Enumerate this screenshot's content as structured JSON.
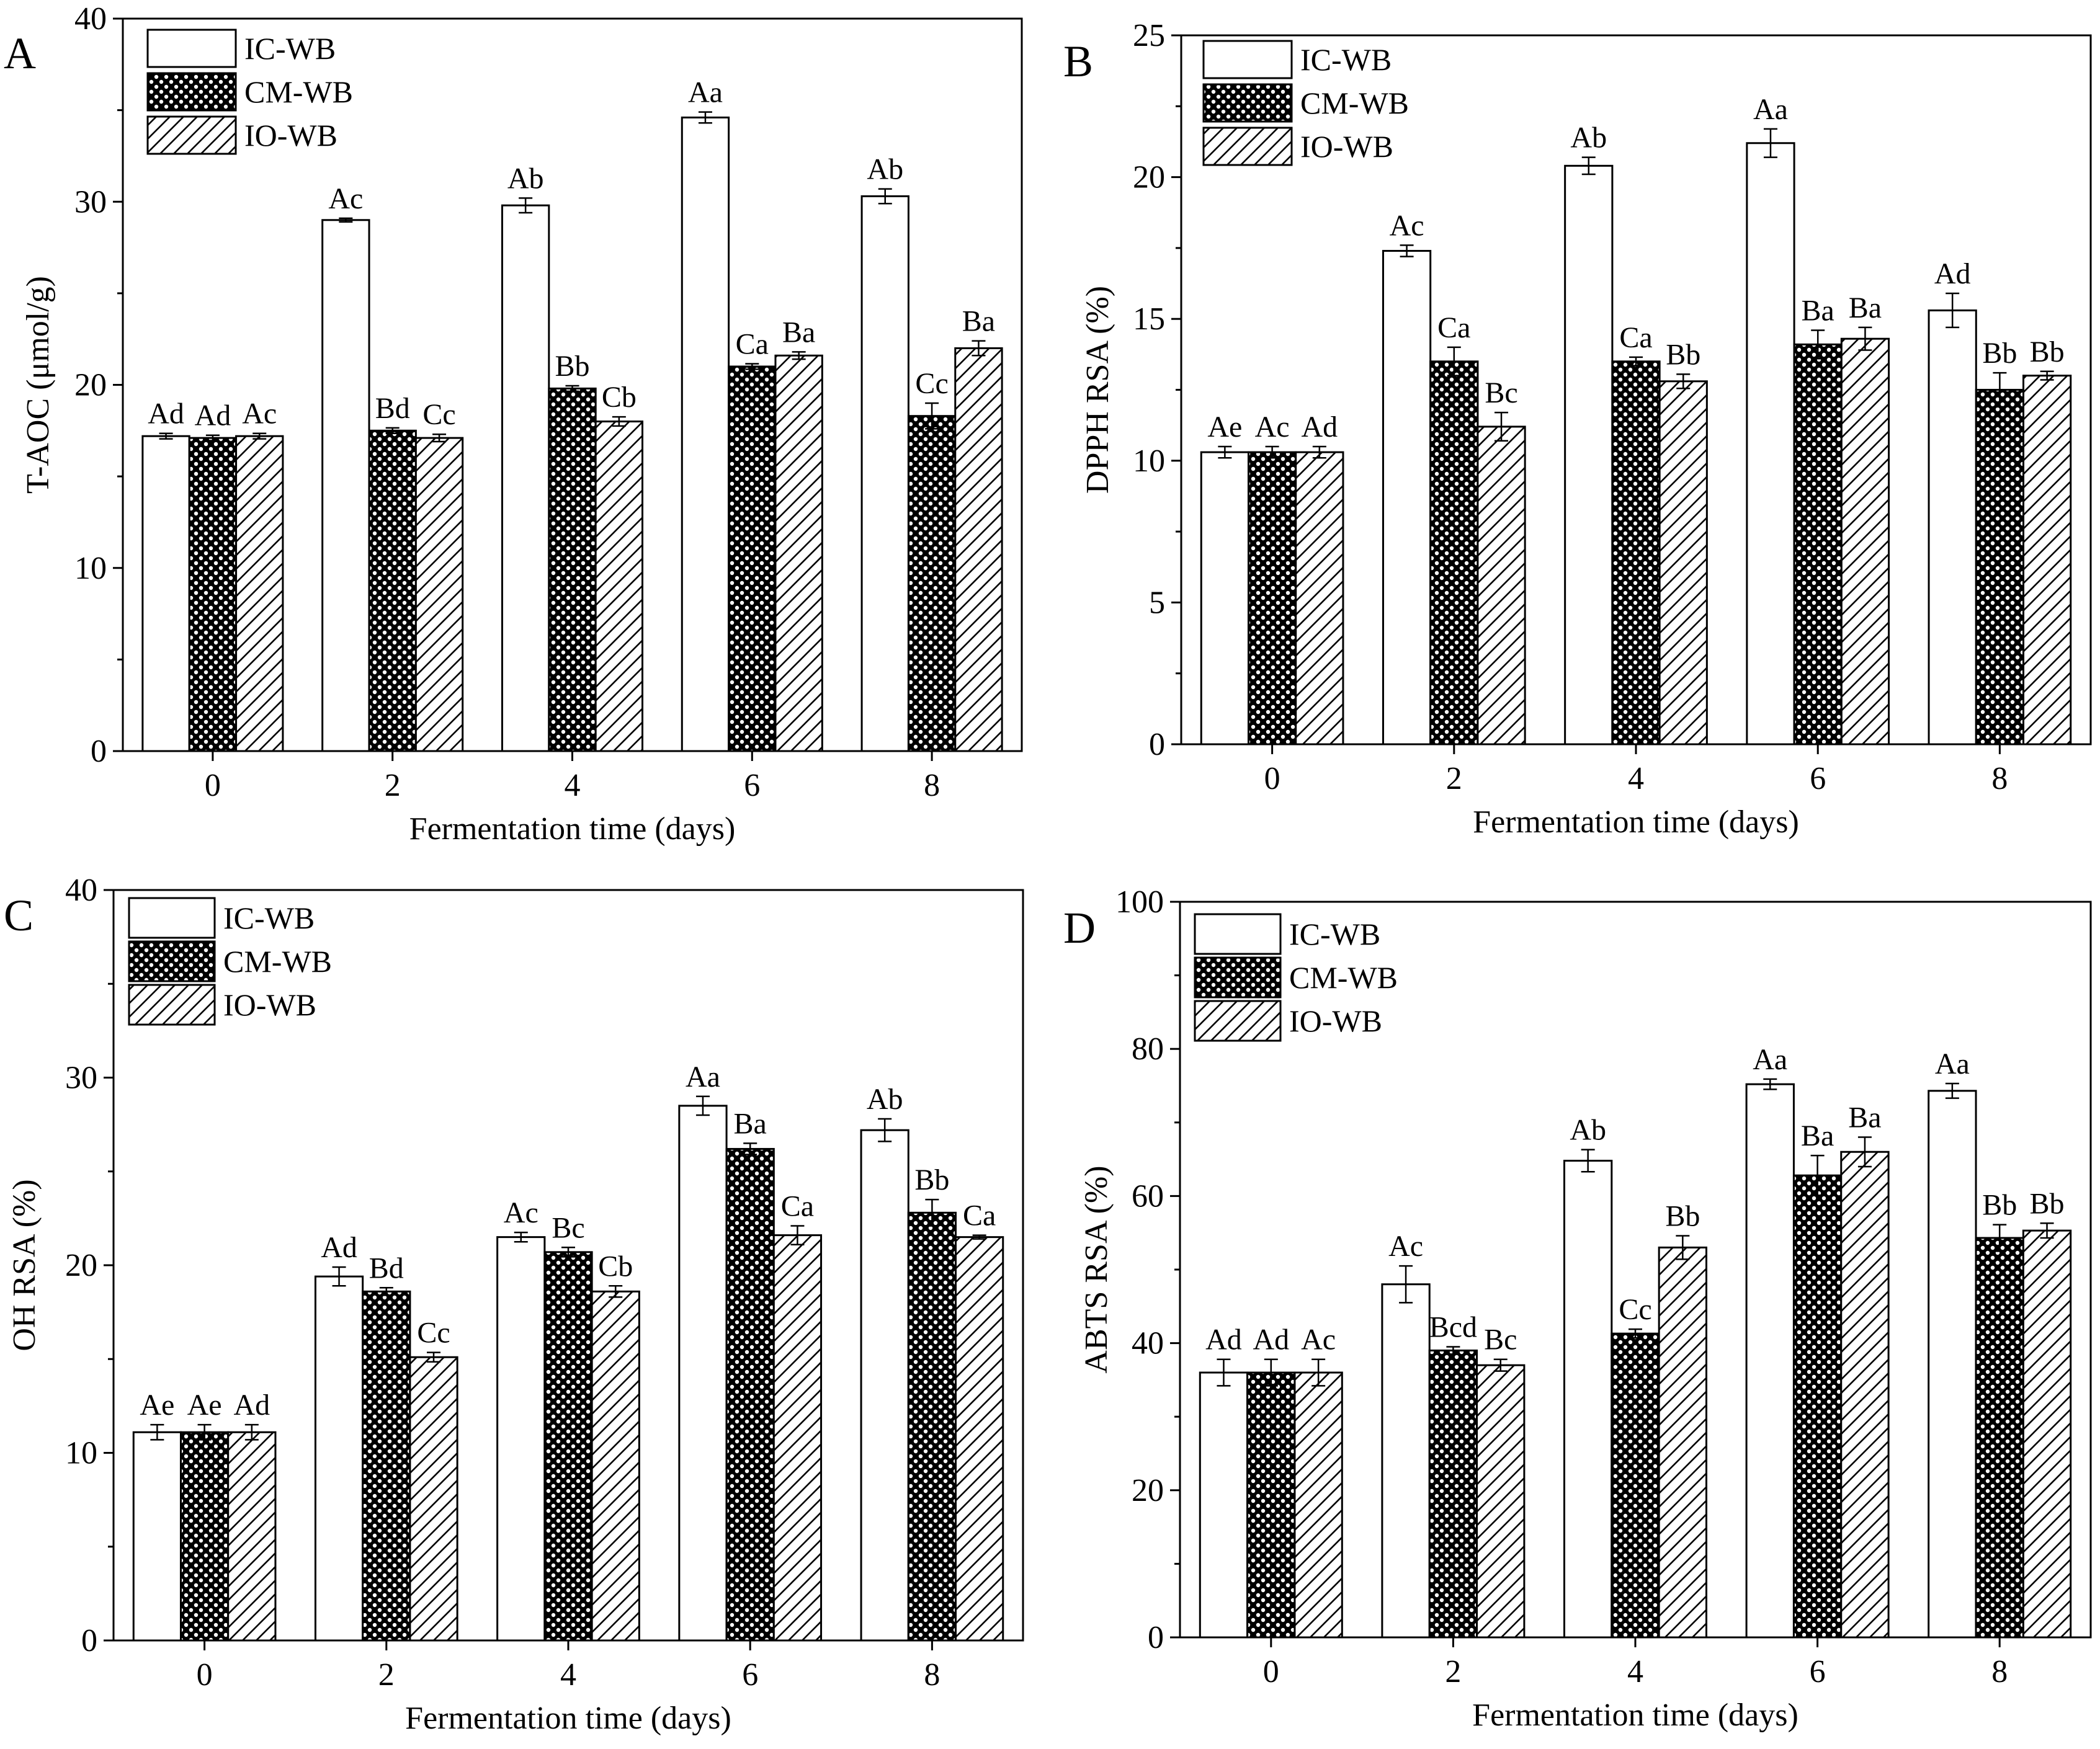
{
  "figure": {
    "patterns": {
      "IC-WB": "empty",
      "CM-WB": "dots",
      "IO-WB": "hatch"
    },
    "colors": {
      "ink": "#000000",
      "fill": "#ffffff"
    }
  },
  "chart_data": [
    {
      "panel": "A",
      "type": "bar",
      "xlabel": "Fermentation time (days)",
      "ylabel": "T-AOC (μmol/g)",
      "categories": [
        "0",
        "2",
        "4",
        "6",
        "8"
      ],
      "ylim": [
        0,
        40
      ],
      "yticks": [
        0,
        10,
        20,
        30,
        40
      ],
      "legend": [
        "IC-WB",
        "CM-WB",
        "IO-WB"
      ],
      "legend_position": "top-left",
      "series": [
        {
          "name": "IC-WB",
          "values": [
            17.2,
            29.0,
            29.8,
            34.6,
            30.3
          ],
          "errors": [
            0.15,
            0.1,
            0.4,
            0.3,
            0.4
          ],
          "labels": [
            "Ad",
            "Ac",
            "Ab",
            "Aa",
            "Ab"
          ]
        },
        {
          "name": "CM-WB",
          "values": [
            17.1,
            17.5,
            19.8,
            21.0,
            18.3
          ],
          "errors": [
            0.15,
            0.15,
            0.15,
            0.15,
            0.7
          ],
          "labels": [
            "Ad",
            "Bd",
            "Bb",
            "Ca",
            "Cc"
          ]
        },
        {
          "name": "IO-WB",
          "values": [
            17.2,
            17.1,
            18.0,
            21.6,
            22.0
          ],
          "errors": [
            0.15,
            0.2,
            0.25,
            0.2,
            0.4
          ],
          "labels": [
            "Ac",
            "Cc",
            "Cb",
            "Ba",
            "Ba"
          ]
        }
      ]
    },
    {
      "panel": "B",
      "type": "bar",
      "xlabel": "Fermentation time (days)",
      "ylabel": "DPPH RSA (%)",
      "categories": [
        "0",
        "2",
        "4",
        "6",
        "8"
      ],
      "ylim": [
        0,
        25
      ],
      "yticks": [
        0,
        5,
        10,
        15,
        20,
        25
      ],
      "legend": [
        "IC-WB",
        "CM-WB",
        "IO-WB"
      ],
      "legend_position": "top-left",
      "series": [
        {
          "name": "IC-WB",
          "values": [
            10.3,
            17.4,
            20.4,
            21.2,
            15.3
          ],
          "errors": [
            0.2,
            0.2,
            0.3,
            0.5,
            0.6
          ],
          "labels": [
            "Ae",
            "Ac",
            "Ab",
            "Aa",
            "Ad"
          ]
        },
        {
          "name": "CM-WB",
          "values": [
            10.3,
            13.5,
            13.5,
            14.1,
            12.5
          ],
          "errors": [
            0.2,
            0.5,
            0.15,
            0.5,
            0.6
          ],
          "labels": [
            "Ac",
            "Ca",
            "Ca",
            "Ba",
            "Bb"
          ]
        },
        {
          "name": "IO-WB",
          "values": [
            10.3,
            11.2,
            12.8,
            14.3,
            13.0
          ],
          "errors": [
            0.2,
            0.5,
            0.25,
            0.4,
            0.15
          ],
          "labels": [
            "Ad",
            "Bc",
            "Bb",
            "Ba",
            "Bb"
          ]
        }
      ]
    },
    {
      "panel": "C",
      "type": "bar",
      "xlabel": "Fermentation time (days)",
      "ylabel": "OH RSA  (%)",
      "categories": [
        "0",
        "2",
        "4",
        "6",
        "8"
      ],
      "ylim": [
        0,
        40
      ],
      "yticks": [
        0,
        10,
        20,
        30,
        40
      ],
      "legend": [
        "IC-WB",
        "CM-WB",
        "IO-WB"
      ],
      "legend_position": "top-left",
      "series": [
        {
          "name": "IC-WB",
          "values": [
            11.1,
            19.4,
            21.5,
            28.5,
            27.2
          ],
          "errors": [
            0.4,
            0.5,
            0.25,
            0.5,
            0.6
          ],
          "labels": [
            "Ae",
            "Ad",
            "Ac",
            "Aa",
            "Ab"
          ]
        },
        {
          "name": "CM-WB",
          "values": [
            11.1,
            18.6,
            20.7,
            26.2,
            22.8
          ],
          "errors": [
            0.4,
            0.2,
            0.25,
            0.3,
            0.7
          ],
          "labels": [
            "Ae",
            "Bd",
            "Bc",
            "Ba",
            "Bb"
          ]
        },
        {
          "name": "IO-WB",
          "values": [
            11.1,
            15.1,
            18.6,
            21.6,
            21.5
          ],
          "errors": [
            0.4,
            0.25,
            0.3,
            0.5,
            0.1
          ],
          "labels": [
            "Ad",
            "Cc",
            "Cb",
            "Ca",
            "Ca"
          ]
        }
      ]
    },
    {
      "panel": "D",
      "type": "bar",
      "xlabel": "Fermentation time (days)",
      "ylabel": "ABTS RSA (%)",
      "categories": [
        "0",
        "2",
        "4",
        "6",
        "8"
      ],
      "ylim": [
        0,
        100
      ],
      "yticks": [
        0,
        20,
        40,
        60,
        80,
        100
      ],
      "legend": [
        "IC-WB",
        "CM-WB",
        "IO-WB"
      ],
      "legend_position": "top-left",
      "series": [
        {
          "name": "IC-WB",
          "values": [
            36.0,
            48.0,
            64.8,
            75.2,
            74.3
          ],
          "errors": [
            1.8,
            2.5,
            1.5,
            0.7,
            1.0
          ],
          "labels": [
            "Ad",
            "Ac",
            "Ab",
            "Aa",
            "Aa"
          ]
        },
        {
          "name": "CM-WB",
          "values": [
            36.0,
            39.0,
            41.3,
            62.8,
            54.3
          ],
          "errors": [
            1.8,
            0.5,
            0.6,
            2.7,
            1.8
          ],
          "labels": [
            "Ad",
            "Bcd",
            "Cc",
            "Ba",
            "Bb"
          ]
        },
        {
          "name": "IO-WB",
          "values": [
            36.0,
            37.0,
            53.0,
            66.0,
            55.3
          ],
          "errors": [
            1.8,
            0.8,
            1.6,
            2.0,
            1.0
          ],
          "labels": [
            "Ac",
            "Bc",
            "Bb",
            "Ba",
            "Bb"
          ]
        }
      ]
    }
  ]
}
